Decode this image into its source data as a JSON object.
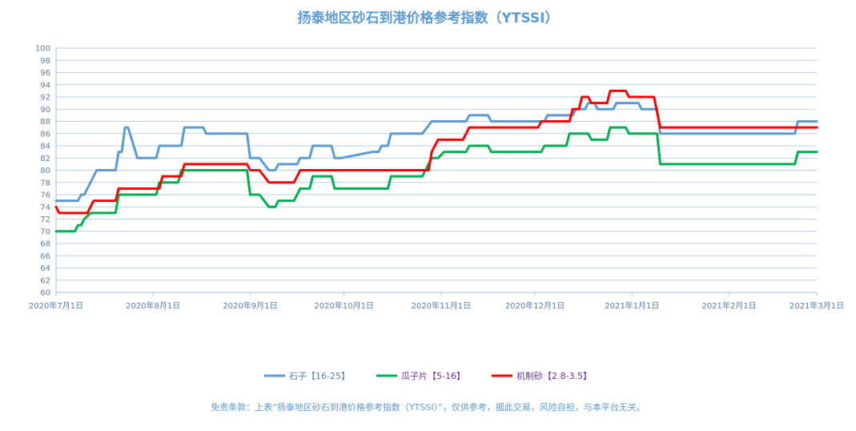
{
  "chart_data": {
    "type": "line",
    "title": "扬泰地区砂石到港价格参考指数（YTSSI）",
    "xlabel": "",
    "ylabel": "",
    "x_start": "2020-07-01",
    "x_end": "2021-03-01",
    "x_ticks": [
      "2020年7月1日",
      "2020年8月1日",
      "2020年9月1日",
      "2020年10月1日",
      "2020年11月1日",
      "2020年12月1日",
      "2021年1月1日",
      "2021年2月1日",
      "2021年3月1日"
    ],
    "x_tick_dates": [
      "2020-07-01",
      "2020-08-01",
      "2020-09-01",
      "2020-10-01",
      "2020-11-01",
      "2020-12-01",
      "2021-01-01",
      "2021-02-01",
      "2021-03-01"
    ],
    "ylim": [
      60,
      100
    ],
    "y_step": 2,
    "grid": "horizontal",
    "legend": "bottom",
    "series": [
      {
        "name": "石子【16-25】",
        "color": "#5b9bd5",
        "points": [
          [
            "2020-07-01",
            75
          ],
          [
            "2020-07-08",
            75
          ],
          [
            "2020-07-09",
            76
          ],
          [
            "2020-07-10",
            76
          ],
          [
            "2020-07-14",
            80
          ],
          [
            "2020-07-20",
            80
          ],
          [
            "2020-07-21",
            83
          ],
          [
            "2020-07-22",
            83
          ],
          [
            "2020-07-23",
            87
          ],
          [
            "2020-07-24",
            87
          ],
          [
            "2020-07-27",
            82
          ],
          [
            "2020-08-02",
            82
          ],
          [
            "2020-08-03",
            84
          ],
          [
            "2020-08-10",
            84
          ],
          [
            "2020-08-11",
            87
          ],
          [
            "2020-08-17",
            87
          ],
          [
            "2020-08-18",
            86
          ],
          [
            "2020-08-31",
            86
          ],
          [
            "2020-09-01",
            82
          ],
          [
            "2020-09-04",
            82
          ],
          [
            "2020-09-07",
            80
          ],
          [
            "2020-09-09",
            80
          ],
          [
            "2020-09-10",
            81
          ],
          [
            "2020-09-16",
            81
          ],
          [
            "2020-09-17",
            82
          ],
          [
            "2020-09-20",
            82
          ],
          [
            "2020-09-21",
            84
          ],
          [
            "2020-09-27",
            84
          ],
          [
            "2020-09-28",
            82
          ],
          [
            "2020-09-30",
            82
          ],
          [
            "2020-10-10",
            83
          ],
          [
            "2020-10-12",
            83
          ],
          [
            "2020-10-13",
            84
          ],
          [
            "2020-10-15",
            84
          ],
          [
            "2020-10-16",
            86
          ],
          [
            "2020-10-26",
            86
          ],
          [
            "2020-10-29",
            88
          ],
          [
            "2020-11-09",
            88
          ],
          [
            "2020-11-10",
            89
          ],
          [
            "2020-11-16",
            89
          ],
          [
            "2020-11-17",
            88
          ],
          [
            "2020-12-04",
            88
          ],
          [
            "2020-12-05",
            89
          ],
          [
            "2020-12-13",
            89
          ],
          [
            "2020-12-14",
            90
          ],
          [
            "2020-12-17",
            90
          ],
          [
            "2020-12-18",
            91
          ],
          [
            "2020-12-20",
            91
          ],
          [
            "2020-12-21",
            90
          ],
          [
            "2020-12-26",
            90
          ],
          [
            "2020-12-27",
            91
          ],
          [
            "2021-01-03",
            91
          ],
          [
            "2021-01-04",
            90
          ],
          [
            "2021-01-09",
            90
          ],
          [
            "2021-01-10",
            86
          ],
          [
            "2021-02-22",
            86
          ],
          [
            "2021-02-23",
            88
          ],
          [
            "2021-03-01",
            88
          ]
        ]
      },
      {
        "name": "瓜子片【5-16】",
        "color": "#00b050",
        "points": [
          [
            "2020-07-01",
            70
          ],
          [
            "2020-07-07",
            70
          ],
          [
            "2020-07-08",
            71
          ],
          [
            "2020-07-09",
            71
          ],
          [
            "2020-07-10",
            72
          ],
          [
            "2020-07-12",
            73
          ],
          [
            "2020-07-20",
            73
          ],
          [
            "2020-07-21",
            76
          ],
          [
            "2020-08-02",
            76
          ],
          [
            "2020-08-03",
            78
          ],
          [
            "2020-08-09",
            78
          ],
          [
            "2020-08-10",
            80
          ],
          [
            "2020-08-31",
            80
          ],
          [
            "2020-09-01",
            76
          ],
          [
            "2020-09-04",
            76
          ],
          [
            "2020-09-07",
            74
          ],
          [
            "2020-09-09",
            74
          ],
          [
            "2020-09-10",
            75
          ],
          [
            "2020-09-15",
            75
          ],
          [
            "2020-09-17",
            77
          ],
          [
            "2020-09-20",
            77
          ],
          [
            "2020-09-21",
            79
          ],
          [
            "2020-09-27",
            79
          ],
          [
            "2020-09-28",
            77
          ],
          [
            "2020-10-15",
            77
          ],
          [
            "2020-10-16",
            79
          ],
          [
            "2020-10-26",
            79
          ],
          [
            "2020-10-27",
            80
          ],
          [
            "2020-10-29",
            82
          ],
          [
            "2020-10-31",
            82
          ],
          [
            "2020-11-02",
            83
          ],
          [
            "2020-11-09",
            83
          ],
          [
            "2020-11-10",
            84
          ],
          [
            "2020-11-16",
            84
          ],
          [
            "2020-11-17",
            83
          ],
          [
            "2020-12-03",
            83
          ],
          [
            "2020-12-04",
            84
          ],
          [
            "2020-12-11",
            84
          ],
          [
            "2020-12-12",
            86
          ],
          [
            "2020-12-18",
            86
          ],
          [
            "2020-12-19",
            85
          ],
          [
            "2020-12-24",
            85
          ],
          [
            "2020-12-25",
            87
          ],
          [
            "2020-12-30",
            87
          ],
          [
            "2020-12-31",
            86
          ],
          [
            "2021-01-09",
            86
          ],
          [
            "2021-01-10",
            81
          ],
          [
            "2021-02-22",
            81
          ],
          [
            "2021-02-23",
            83
          ],
          [
            "2021-03-01",
            83
          ]
        ]
      },
      {
        "name": "机制砂【2.8-3.5】",
        "color": "#ff0000",
        "points": [
          [
            "2020-07-01",
            74
          ],
          [
            "2020-07-02",
            73
          ],
          [
            "2020-07-11",
            73
          ],
          [
            "2020-07-13",
            75
          ],
          [
            "2020-07-20",
            75
          ],
          [
            "2020-07-21",
            77
          ],
          [
            "2020-08-03",
            77
          ],
          [
            "2020-08-04",
            79
          ],
          [
            "2020-08-10",
            79
          ],
          [
            "2020-08-11",
            81
          ],
          [
            "2020-08-31",
            81
          ],
          [
            "2020-09-01",
            80
          ],
          [
            "2020-09-04",
            80
          ],
          [
            "2020-09-07",
            78
          ],
          [
            "2020-09-15",
            78
          ],
          [
            "2020-09-17",
            80
          ],
          [
            "2020-10-28",
            80
          ],
          [
            "2020-10-29",
            83
          ],
          [
            "2020-10-31",
            85
          ],
          [
            "2020-11-08",
            85
          ],
          [
            "2020-11-10",
            87
          ],
          [
            "2020-12-02",
            87
          ],
          [
            "2020-12-03",
            88
          ],
          [
            "2020-12-12",
            88
          ],
          [
            "2020-12-13",
            90
          ],
          [
            "2020-12-15",
            90
          ],
          [
            "2020-12-16",
            92
          ],
          [
            "2020-12-18",
            92
          ],
          [
            "2020-12-19",
            91
          ],
          [
            "2020-12-24",
            91
          ],
          [
            "2020-12-25",
            93
          ],
          [
            "2020-12-30",
            93
          ],
          [
            "2020-12-31",
            92
          ],
          [
            "2021-01-08",
            92
          ],
          [
            "2021-01-10",
            87
          ],
          [
            "2021-03-01",
            87
          ]
        ]
      }
    ]
  },
  "disclaimer": "免责条款：上表“扬泰地区砂石到港价格参考指数（YTSSI）”，仅供参考，据此交易，风险自担，与本平台无关。"
}
